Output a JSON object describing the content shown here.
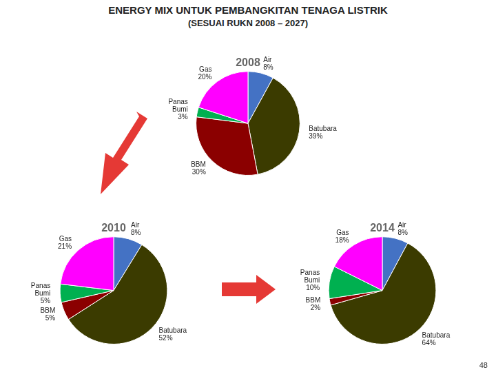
{
  "title": "ENERGY MIX UNTUK PEMBANGKITAN TENAGA LISTRIK",
  "subtitle": "(SESUAI RUKN 2008 – 2027)",
  "annotations": [
    "48"
  ],
  "chart_data": [
    {
      "type": "pie",
      "title": "2008",
      "categories": [
        "Air",
        "Batubara",
        "BBM",
        "Panas Bumi",
        "Gas"
      ],
      "values": [
        8,
        39,
        30,
        3,
        20
      ],
      "value_labels": [
        "8%",
        "39%",
        "30%",
        "3%",
        "20%"
      ],
      "colors": [
        "#4472C4",
        "#3B3B00",
        "#8B0000",
        "#00B050",
        "#FF00FF"
      ],
      "data_labels": true
    },
    {
      "type": "pie",
      "title": "2010",
      "categories": [
        "Air",
        "Batubara",
        "BBM",
        "Panas Bumi",
        "Gas"
      ],
      "values": [
        8,
        52,
        5,
        5,
        21
      ],
      "value_labels": [
        "8%",
        "52%",
        "5%",
        "5%",
        "21%"
      ],
      "colors": [
        "#4472C4",
        "#3B3B00",
        "#8B0000",
        "#00B050",
        "#FF00FF"
      ],
      "data_labels": true
    },
    {
      "type": "pie",
      "title": "2014",
      "categories": [
        "Air",
        "Batubara",
        "BBM",
        "Panas Bumi",
        "Gas"
      ],
      "values": [
        8,
        64,
        2,
        10,
        18
      ],
      "value_labels": [
        "8%",
        "64%",
        "2%",
        "10%",
        "18%"
      ],
      "colors": [
        "#4472C4",
        "#3B3B00",
        "#8B0000",
        "#00B050",
        "#FF00FF"
      ],
      "data_labels": true
    }
  ]
}
